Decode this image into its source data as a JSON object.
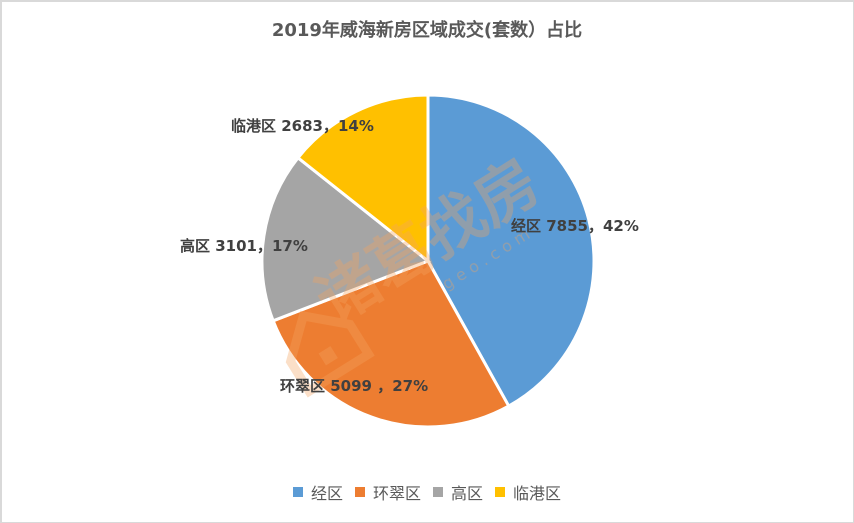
{
  "chart_data": {
    "type": "pie",
    "title": "2019年威海新房区域成交(套数）占比",
    "categories": [
      "经区",
      "环翠区",
      "高区",
      "临港区"
    ],
    "values": [
      7855,
      5099,
      3101,
      2683
    ],
    "percentages": [
      42,
      27,
      17,
      14
    ],
    "colors": [
      "#5b9bd5",
      "#ed7d31",
      "#a5a5a5",
      "#ffc000"
    ],
    "data_labels": [
      "经区 7855，42%",
      "环翠区 5099 ，27%",
      "高区 3101，17%",
      "临港区 2683，14%"
    ],
    "legend_position": "bottom",
    "start_angle": 0,
    "direction": "clockwise"
  },
  "title": "2019年威海新房区域成交(套数）占比",
  "labels": {
    "jing": "经区 7855，42%",
    "huancui": "环翠区 5099 ，27%",
    "gao": "高区 3101，17%",
    "lingang": "临港区 2683，14%"
  },
  "legend": [
    {
      "label": "经区",
      "color": "#5b9bd5"
    },
    {
      "label": "环翠区",
      "color": "#ed7d31"
    },
    {
      "label": "高区",
      "color": "#a5a5a5"
    },
    {
      "label": "临港区",
      "color": "#ffc000"
    }
  ],
  "watermark": {
    "text": "诸葛找房",
    "sub": "g e o . c o m"
  }
}
